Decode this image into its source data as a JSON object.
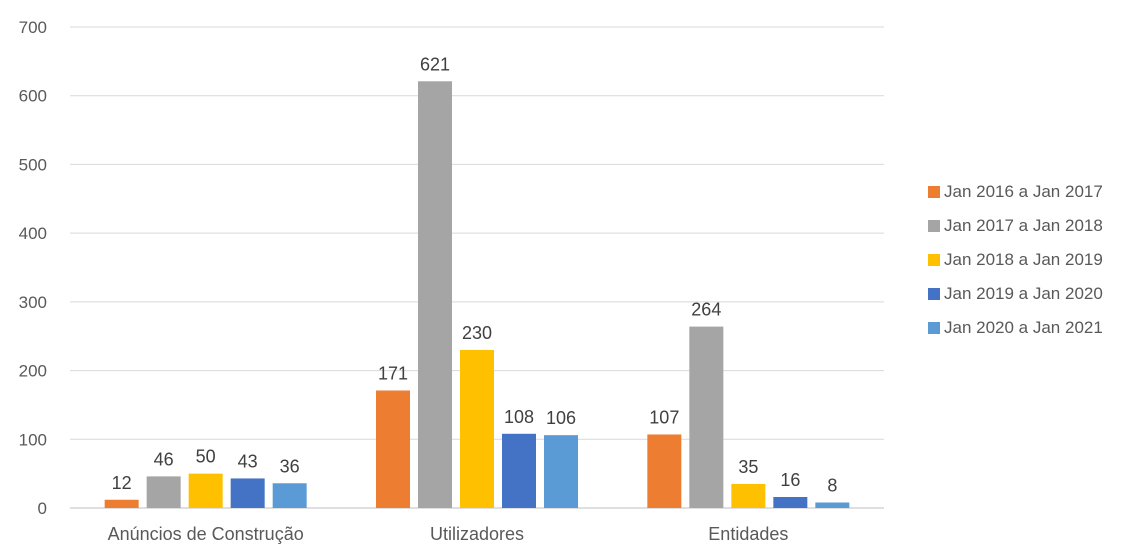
{
  "chart_data": {
    "type": "bar",
    "categories": [
      "Anúncios de Construção",
      "Utilizadores",
      "Entidades"
    ],
    "series": [
      {
        "name": "Jan 2016 a Jan 2017",
        "color": "#ED7D31",
        "values": [
          12,
          171,
          107
        ]
      },
      {
        "name": "Jan 2017 a Jan 2018",
        "color": "#A5A5A5",
        "values": [
          46,
          621,
          264
        ]
      },
      {
        "name": "Jan 2018 a Jan 2019",
        "color": "#FFC000",
        "values": [
          50,
          230,
          35
        ]
      },
      {
        "name": "Jan 2019 a Jan 2020",
        "color": "#4472C4",
        "values": [
          43,
          108,
          16
        ]
      },
      {
        "name": "Jan 2020 a Jan 2021",
        "color": "#5B9BD5",
        "values": [
          36,
          106,
          8
        ]
      }
    ],
    "yticks": [
      "0",
      "100",
      "200",
      "300",
      "400",
      "500",
      "600",
      "700"
    ],
    "ylim": [
      0,
      700
    ],
    "grid": true,
    "legend_position": "right"
  }
}
